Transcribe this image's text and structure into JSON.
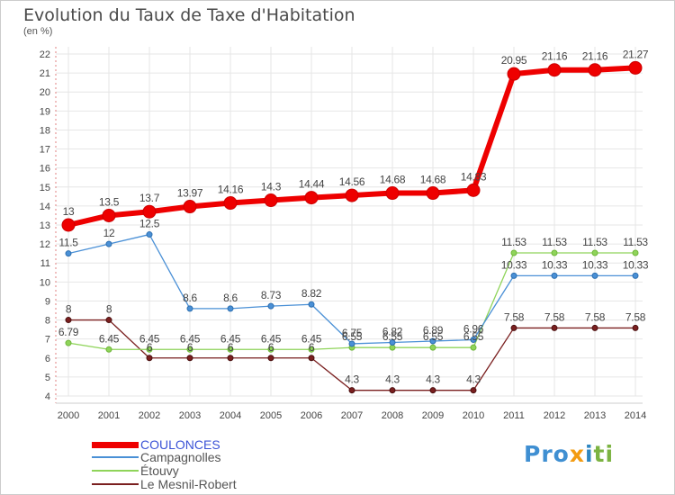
{
  "header": {
    "title": "Evolution du Taux de Taxe d'Habitation",
    "unit": "(en %)"
  },
  "logo": {
    "parts": [
      "Pro",
      "x",
      "i",
      "ti"
    ],
    "colors": [
      "#3f8fd2",
      "#f39c12",
      "#2e86c1",
      "#7cb342"
    ]
  },
  "chart_data": {
    "type": "line",
    "title": "Evolution du Taux de Taxe d'Habitation",
    "ylabel": "(en %)",
    "xlabel": "",
    "x": [
      "2000",
      "2001",
      "2002",
      "2003",
      "2004",
      "2005",
      "2006",
      "2007",
      "2008",
      "2009",
      "2010",
      "2011",
      "2012",
      "2013",
      "2014"
    ],
    "ylim": [
      4,
      22
    ],
    "yticks": [
      4,
      5,
      6,
      7,
      8,
      9,
      10,
      11,
      12,
      13,
      14,
      15,
      16,
      17,
      18,
      19,
      20,
      21,
      22
    ],
    "grid": true,
    "legend_position": "bottom-left",
    "series": [
      {
        "name": "COULONCES",
        "color": "#ee0000",
        "values": [
          13,
          13.5,
          13.7,
          13.97,
          14.16,
          14.3,
          14.44,
          14.56,
          14.68,
          14.68,
          14.83,
          20.95,
          21.16,
          21.16,
          21.27
        ],
        "labels": [
          "13",
          "13.5",
          "13.7",
          "13.97",
          "14.16",
          "14.3",
          "14.44",
          "14.56",
          "14.68",
          "14.68",
          "14.83",
          "20.95",
          "21.16",
          "21.16",
          "21.27"
        ]
      },
      {
        "name": "Campagnolles",
        "color": "#4a90d6",
        "values": [
          11.5,
          12,
          12.5,
          8.6,
          8.6,
          8.73,
          8.82,
          6.75,
          6.82,
          6.89,
          6.96,
          10.33,
          10.33,
          10.33,
          10.33
        ],
        "labels": [
          "11.5",
          "12",
          "12.5",
          "8.6",
          "8.6",
          "8.73",
          "8.82",
          "6.75",
          "6.82",
          "6.89",
          "6.96",
          "10.33",
          "10.33",
          "10.33",
          "10.33"
        ]
      },
      {
        "name": "Étouvy",
        "color": "#8fd45a",
        "values": [
          6.79,
          6.45,
          6.45,
          6.45,
          6.45,
          6.45,
          6.45,
          6.55,
          6.55,
          6.55,
          6.55,
          11.53,
          11.53,
          11.53,
          11.53
        ],
        "labels": [
          "6.79",
          "6.45",
          "6.45",
          "6.45",
          "6.45",
          "6.45",
          "6.45",
          "6.55",
          "6.55",
          "6.55",
          "6.55",
          "11.53",
          "11.53",
          "11.53",
          "11.53"
        ]
      },
      {
        "name": "Le Mesnil-Robert",
        "color": "#7a1f1f",
        "values": [
          8,
          8,
          6,
          6,
          6,
          6,
          6,
          4.3,
          4.3,
          4.3,
          4.3,
          7.58,
          7.58,
          7.58,
          7.58
        ],
        "labels": [
          "8",
          "8",
          "6",
          "6",
          "6",
          "6",
          "6",
          "4.3",
          "4.3",
          "4.3",
          "4.3",
          "7.58",
          "7.58",
          "7.58",
          "7.58"
        ]
      }
    ]
  }
}
